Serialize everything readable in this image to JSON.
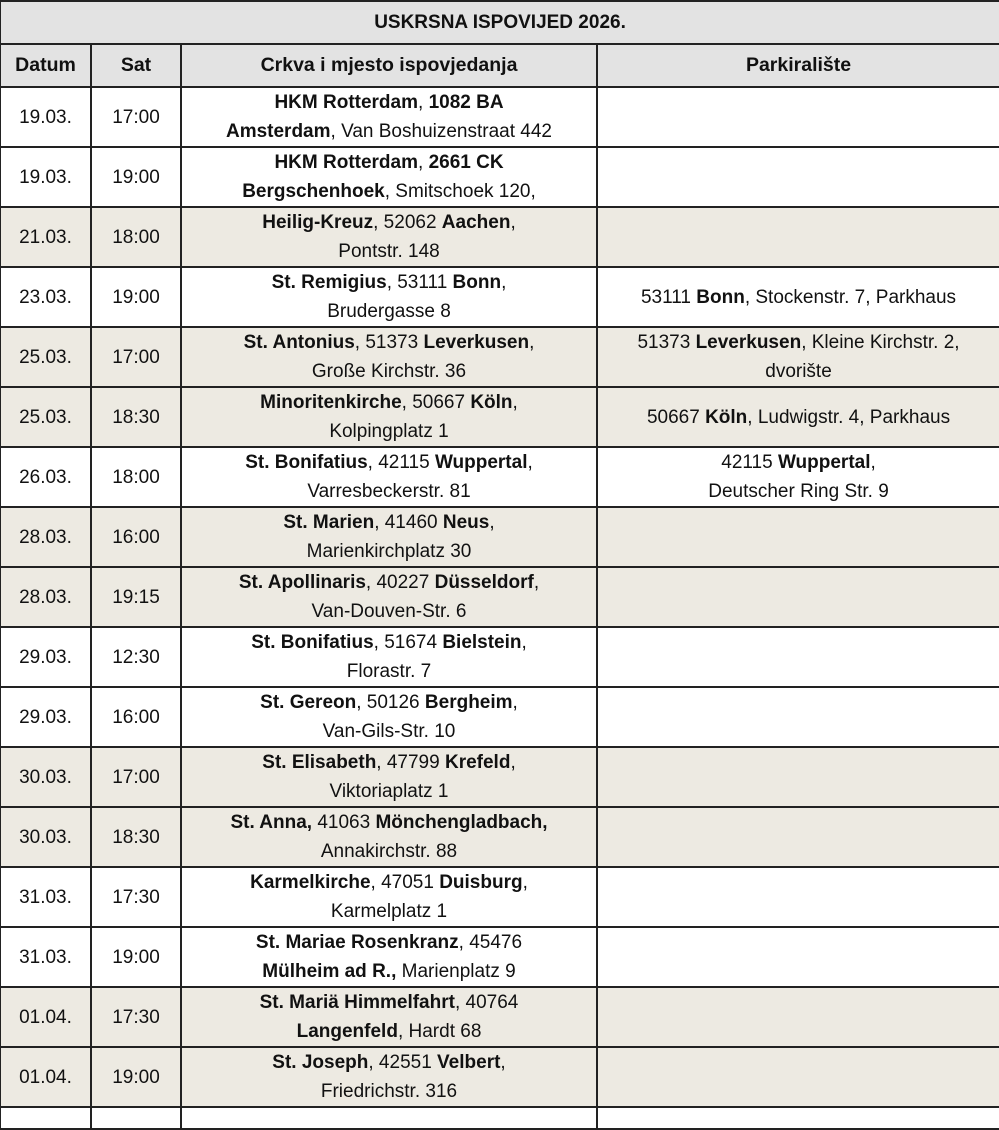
{
  "title": "USKRSNA ISPOVIJED 2026.",
  "columns": [
    "Datum",
    "Sat",
    "Crkva i mjesto ispovjedanja",
    "Parkiralište"
  ],
  "colors": {
    "header_bg": "#e3e3e3",
    "shaded_row_bg": "#edeae2",
    "border": "#222222"
  },
  "rows": [
    {
      "date": "19.03.",
      "time": "17:00",
      "shaded": false,
      "church": [
        [
          {
            "t": "HKM Rotterdam",
            "b": true
          },
          {
            "t": ", "
          },
          {
            "t": "1082 BA",
            "b": true
          }
        ],
        [
          {
            "t": "Amsterdam",
            "b": true
          },
          {
            "t": ", Van Boshuizenstraat 442"
          }
        ]
      ],
      "parking": []
    },
    {
      "date": "19.03.",
      "time": "19:00",
      "shaded": false,
      "church": [
        [
          {
            "t": "HKM Rotterdam",
            "b": true
          },
          {
            "t": ", "
          },
          {
            "t": "2661 CK",
            "b": true
          }
        ],
        [
          {
            "t": "Bergschenhoek",
            "b": true
          },
          {
            "t": ", Smitschoek 120,"
          }
        ]
      ],
      "parking": []
    },
    {
      "date": "21.03.",
      "time": "18:00",
      "shaded": true,
      "church": [
        [
          {
            "t": "Heilig-Kreuz",
            "b": true
          },
          {
            "t": ", 52062 "
          },
          {
            "t": "Aachen",
            "b": true
          },
          {
            "t": ","
          }
        ],
        [
          {
            "t": "Pontstr. 148"
          }
        ]
      ],
      "parking": []
    },
    {
      "date": "23.03.",
      "time": "19:00",
      "shaded": false,
      "church": [
        [
          {
            "t": "St. Remigius",
            "b": true
          },
          {
            "t": ", 53111 "
          },
          {
            "t": "Bonn",
            "b": true
          },
          {
            "t": ","
          }
        ],
        [
          {
            "t": "Brudergasse 8"
          }
        ]
      ],
      "parking": [
        [
          {
            "t": "53111 "
          },
          {
            "t": "Bonn",
            "b": true
          },
          {
            "t": ", Stockenstr. 7, Parkhaus"
          }
        ]
      ]
    },
    {
      "date": "25.03.",
      "time": "17:00",
      "shaded": true,
      "church": [
        [
          {
            "t": "St. Antonius",
            "b": true
          },
          {
            "t": ", 51373 "
          },
          {
            "t": "Leverkusen",
            "b": true
          },
          {
            "t": ","
          }
        ],
        [
          {
            "t": "Große Kirchstr. 36"
          }
        ]
      ],
      "parking": [
        [
          {
            "t": "51373 "
          },
          {
            "t": "Leverkusen",
            "b": true
          },
          {
            "t": ", Kleine Kirchstr. 2,"
          }
        ],
        [
          {
            "t": "dvorište"
          }
        ]
      ]
    },
    {
      "date": "25.03.",
      "time": "18:30",
      "shaded": true,
      "church": [
        [
          {
            "t": "Minoritenkirche",
            "b": true
          },
          {
            "t": ", 50667 "
          },
          {
            "t": "Köln",
            "b": true
          },
          {
            "t": ","
          }
        ],
        [
          {
            "t": "Kolpingplatz 1"
          }
        ]
      ],
      "parking": [
        [
          {
            "t": "50667 "
          },
          {
            "t": "Köln",
            "b": true
          },
          {
            "t": ", Ludwigstr. 4, Parkhaus"
          }
        ]
      ]
    },
    {
      "date": "26.03.",
      "time": "18:00",
      "shaded": false,
      "church": [
        [
          {
            "t": "St. Bonifatius",
            "b": true
          },
          {
            "t": ", 42115 "
          },
          {
            "t": "Wuppertal",
            "b": true
          },
          {
            "t": ","
          }
        ],
        [
          {
            "t": "Varresbeckerstr. 81"
          }
        ]
      ],
      "parking": [
        [
          {
            "t": "42115 "
          },
          {
            "t": "Wuppertal",
            "b": true
          },
          {
            "t": ","
          }
        ],
        [
          {
            "t": "Deutscher Ring Str. 9"
          }
        ]
      ]
    },
    {
      "date": "28.03.",
      "time": "16:00",
      "shaded": true,
      "church": [
        [
          {
            "t": "St. Marien",
            "b": true
          },
          {
            "t": ", 41460 "
          },
          {
            "t": "Neus",
            "b": true
          },
          {
            "t": ","
          }
        ],
        [
          {
            "t": "Marienkirchplatz 30"
          }
        ]
      ],
      "parking": []
    },
    {
      "date": "28.03.",
      "time": "19:15",
      "shaded": true,
      "church": [
        [
          {
            "t": "St. Apollinaris",
            "b": true
          },
          {
            "t": ", 40227 "
          },
          {
            "t": "Düsseldorf",
            "b": true
          },
          {
            "t": ","
          }
        ],
        [
          {
            "t": "Van-Douven-Str. 6"
          }
        ]
      ],
      "parking": []
    },
    {
      "date": "29.03.",
      "time": "12:30",
      "shaded": false,
      "church": [
        [
          {
            "t": "St. Bonifatius",
            "b": true
          },
          {
            "t": ", 51674 "
          },
          {
            "t": "Bielstein",
            "b": true
          },
          {
            "t": ","
          }
        ],
        [
          {
            "t": "Florastr. 7"
          }
        ]
      ],
      "parking": []
    },
    {
      "date": "29.03.",
      "time": "16:00",
      "shaded": false,
      "church": [
        [
          {
            "t": "St. Gereon",
            "b": true
          },
          {
            "t": ", 50126 "
          },
          {
            "t": "Bergheim",
            "b": true
          },
          {
            "t": ","
          }
        ],
        [
          {
            "t": "Van-Gils-Str. 10"
          }
        ]
      ],
      "parking": []
    },
    {
      "date": "30.03.",
      "time": "17:00",
      "shaded": true,
      "church": [
        [
          {
            "t": "St. Elisabeth",
            "b": true
          },
          {
            "t": ", 47799 "
          },
          {
            "t": "Krefeld",
            "b": true
          },
          {
            "t": ","
          }
        ],
        [
          {
            "t": "Viktoriaplatz 1"
          }
        ]
      ],
      "parking": []
    },
    {
      "date": "30.03.",
      "time": "18:30",
      "shaded": true,
      "church": [
        [
          {
            "t": "St. Anna,",
            "b": true
          },
          {
            "t": " 41063 "
          },
          {
            "t": "Mönchengladbach,",
            "b": true
          }
        ],
        [
          {
            "t": "Annakirchstr. 88"
          }
        ]
      ],
      "parking": []
    },
    {
      "date": "31.03.",
      "time": "17:30",
      "shaded": false,
      "church": [
        [
          {
            "t": "Karmelkirche",
            "b": true
          },
          {
            "t": ", 47051 "
          },
          {
            "t": "Duisburg",
            "b": true
          },
          {
            "t": ","
          }
        ],
        [
          {
            "t": "Karmelplatz 1"
          }
        ]
      ],
      "parking": []
    },
    {
      "date": "31.03.",
      "time": "19:00",
      "shaded": false,
      "church": [
        [
          {
            "t": "St. Mariae Rosenkranz",
            "b": true
          },
          {
            "t": ", 45476"
          }
        ],
        [
          {
            "t": "Mülheim ad R.,",
            "b": true
          },
          {
            "t": " Marienplatz 9"
          }
        ]
      ],
      "parking": []
    },
    {
      "date": "01.04.",
      "time": "17:30",
      "shaded": true,
      "church": [
        [
          {
            "t": "St. Mariä Himmelfahrt",
            "b": true
          },
          {
            "t": ", 40764"
          }
        ],
        [
          {
            "t": "Langenfeld",
            "b": true
          },
          {
            "t": ", Hardt 68"
          }
        ]
      ],
      "parking": []
    },
    {
      "date": "01.04.",
      "time": "19:00",
      "shaded": true,
      "church": [
        [
          {
            "t": "St. Joseph",
            "b": true
          },
          {
            "t": ", 42551 "
          },
          {
            "t": "Velbert",
            "b": true
          },
          {
            "t": ","
          }
        ],
        [
          {
            "t": "Friedrichstr. 316"
          }
        ]
      ],
      "parking": []
    }
  ]
}
